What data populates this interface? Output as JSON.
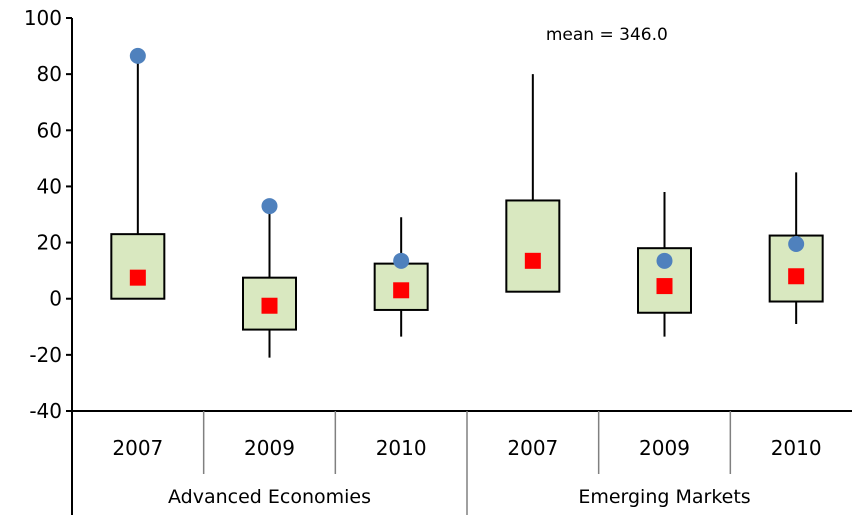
{
  "chart_data": {
    "type": "box",
    "title": "",
    "xlabel": "",
    "ylabel": "",
    "ylim": [
      -40,
      100
    ],
    "yticks": [
      100,
      80,
      60,
      40,
      20,
      0,
      -20,
      -40
    ],
    "grid": false,
    "legend": "none",
    "categories": [
      "2007",
      "2009",
      "2010",
      "2007",
      "2009",
      "2010"
    ],
    "groups": [
      {
        "label": "Advanced Economies",
        "span": [
          0,
          2
        ]
      },
      {
        "label": "Emerging Markets",
        "span": [
          3,
          5
        ]
      }
    ],
    "annotations": [
      {
        "text": "mean = 346.0",
        "category_index": 3
      }
    ],
    "boxes": [
      {
        "category": "2007",
        "group": "Advanced Economies",
        "whisker_low": 0,
        "q1": 0,
        "q3": 23,
        "whisker_high": 85,
        "median": 7.5,
        "mean": 86.5
      },
      {
        "category": "2009",
        "group": "Advanced Economies",
        "whisker_low": -21,
        "q1": -11,
        "q3": 7.5,
        "whisker_high": 31,
        "median": -2.5,
        "mean": 33
      },
      {
        "category": "2010",
        "group": "Advanced Economies",
        "whisker_low": -13.5,
        "q1": -4,
        "q3": 12.5,
        "whisker_high": 29,
        "median": 3,
        "mean": 13.5
      },
      {
        "category": "2007",
        "group": "Emerging Markets",
        "whisker_low": 2.5,
        "q1": 2.5,
        "q3": 35,
        "whisker_high": 80,
        "median": 13.5,
        "mean": null
      },
      {
        "category": "2009",
        "group": "Emerging Markets",
        "whisker_low": -13.5,
        "q1": -5,
        "q3": 18,
        "whisker_high": 38,
        "median": 4.5,
        "mean": 13.5
      },
      {
        "category": "2010",
        "group": "Emerging Markets",
        "whisker_low": -9,
        "q1": -1,
        "q3": 22.5,
        "whisker_high": 45,
        "median": 8,
        "mean": 19.5
      }
    ],
    "colors": {
      "box_fill": "#d9e8c0",
      "box_stroke": "#000000",
      "median_marker": "#ff0000",
      "mean_marker": "#4f81bd",
      "axis": "#000000",
      "separator": "#808080"
    }
  }
}
